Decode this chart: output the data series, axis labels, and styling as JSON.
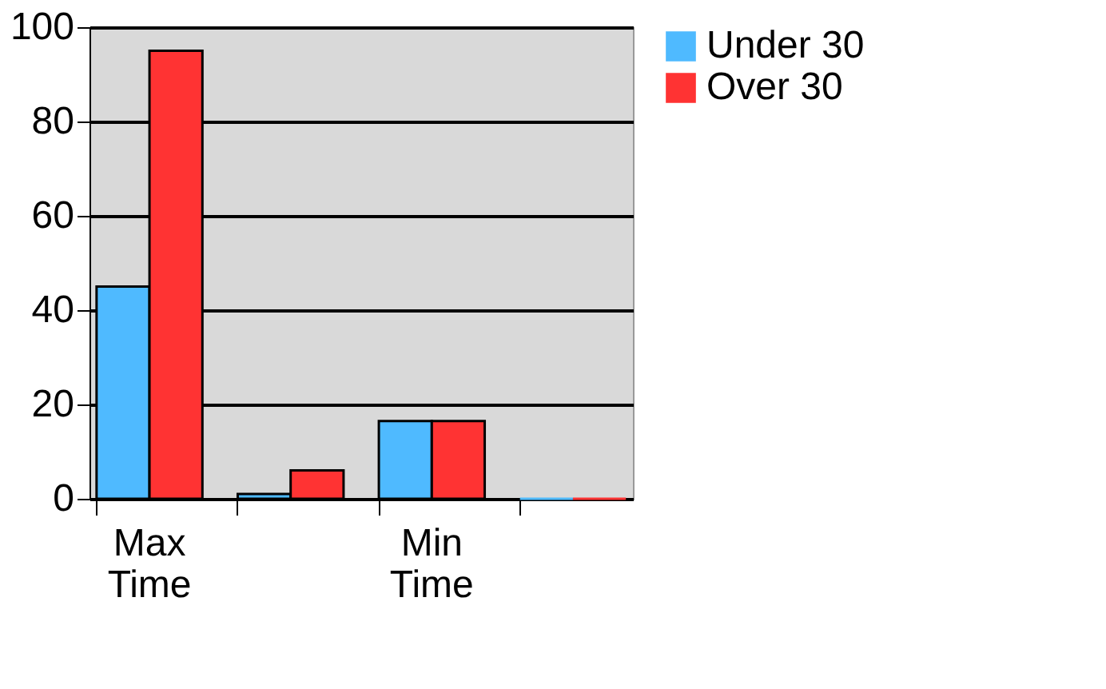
{
  "chart_data": {
    "type": "bar",
    "categories": [
      "Max Time",
      null,
      "Min Time",
      null
    ],
    "series": [
      {
        "name": "Under 30",
        "color": "#4fbaff",
        "values": [
          45,
          1,
          16.5,
          0
        ]
      },
      {
        "name": "Over 30",
        "color": "#ff3333",
        "values": [
          95,
          6,
          16.5,
          0
        ]
      }
    ],
    "ylim": [
      0,
      100
    ],
    "yticks": [
      0,
      20,
      40,
      60,
      80,
      100
    ],
    "grid": "y",
    "legend": "right"
  }
}
